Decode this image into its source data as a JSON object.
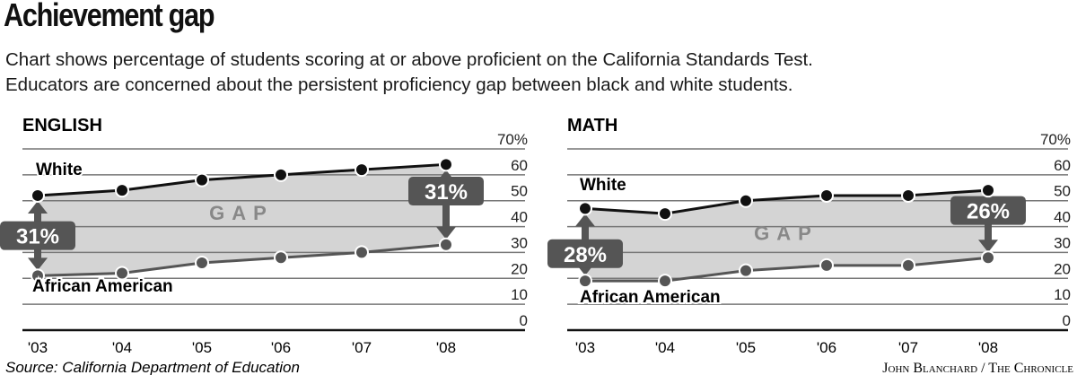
{
  "title": "Achievement gap",
  "subtitle_lines": [
    "Chart shows percentage of students scoring at or above proficient on the California Standards Test.",
    "Educators are concerned about the persistent proficiency gap between black and white students."
  ],
  "source": "Source: California Department of Education",
  "credit": "John Blanchard / The Chronicle",
  "colors": {
    "white_line": "#111111",
    "aa_line": "#555555",
    "gap_fill": "#d4d4d4",
    "badge": "#555555",
    "gap_text": "#888888"
  },
  "chart_data": [
    {
      "type": "line",
      "title": "ENGLISH",
      "categories": [
        "'03",
        "'04",
        "'05",
        "'06",
        "'07",
        "'08"
      ],
      "y_ticks": [
        "70%",
        "60",
        "50",
        "40",
        "30",
        "20",
        "10",
        "0"
      ],
      "ylim": [
        0,
        70
      ],
      "grid": true,
      "series": [
        {
          "name": "White",
          "values": [
            52,
            54,
            58,
            60,
            62,
            64
          ]
        },
        {
          "name": "African American",
          "values": [
            21,
            22,
            26,
            28,
            30,
            33
          ]
        }
      ],
      "gap_label": "GAP",
      "annotations": [
        "31%",
        "31%"
      ]
    },
    {
      "type": "line",
      "title": "MATH",
      "categories": [
        "'03",
        "'04",
        "'05",
        "'06",
        "'07",
        "'08"
      ],
      "y_ticks": [
        "70%",
        "60",
        "50",
        "40",
        "30",
        "20",
        "10",
        "0"
      ],
      "ylim": [
        0,
        70
      ],
      "grid": true,
      "series": [
        {
          "name": "White",
          "values": [
            47,
            45,
            50,
            52,
            52,
            54
          ]
        },
        {
          "name": "African American",
          "values": [
            19,
            19,
            23,
            25,
            25,
            28
          ]
        }
      ],
      "gap_label": "GAP",
      "annotations": [
        "28%",
        "26%"
      ]
    }
  ]
}
